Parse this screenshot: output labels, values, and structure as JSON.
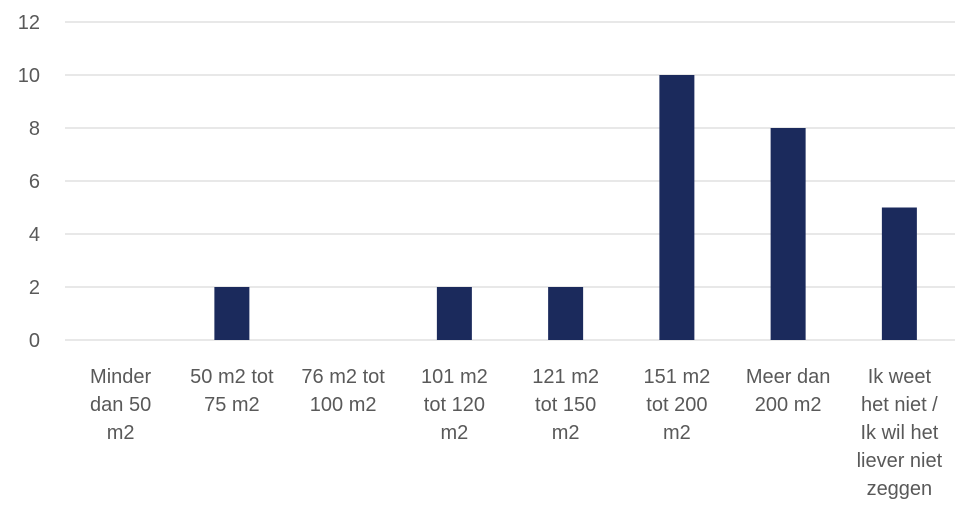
{
  "chart_data": {
    "type": "bar",
    "title": "",
    "xlabel": "",
    "ylabel": "",
    "categories": [
      [
        "Minder",
        "dan 50",
        "m2"
      ],
      [
        "50 m2  tot",
        "75 m2"
      ],
      [
        "76 m2  tot",
        "100 m2"
      ],
      [
        "101 m2",
        "tot 120",
        "m2"
      ],
      [
        "121 m2",
        "tot 150",
        "m2"
      ],
      [
        "151 m2",
        "tot 200",
        "m2"
      ],
      [
        "Meer dan",
        "200 m2"
      ],
      [
        "Ik weet",
        "het niet /",
        "Ik wil het",
        "liever niet",
        "zeggen"
      ]
    ],
    "values": [
      0,
      2,
      0,
      2,
      2,
      10,
      8,
      5
    ],
    "ylim": [
      0,
      12
    ],
    "yticks": [
      0,
      2,
      4,
      6,
      8,
      10,
      12
    ],
    "grid": true,
    "colors": {
      "bar": "#1b2a5c",
      "grid": "#d9d9d9",
      "text": "#595959"
    }
  }
}
